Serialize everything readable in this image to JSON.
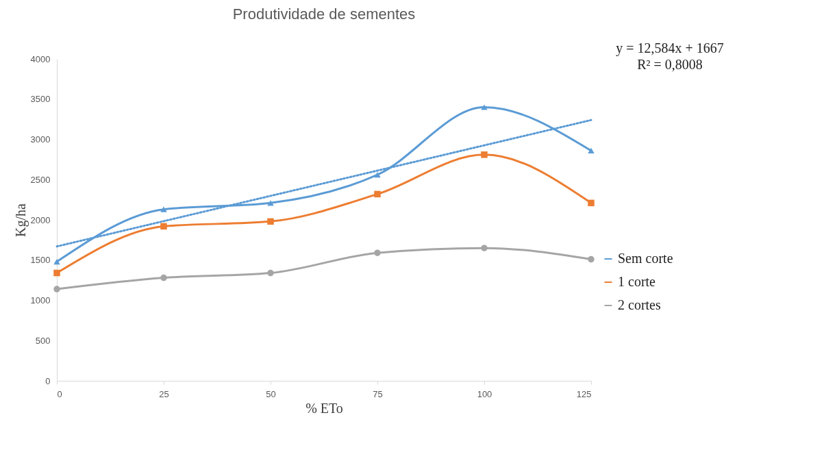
{
  "chart_data": {
    "type": "line",
    "title": "Produtividade de sementes",
    "xlabel": "% ETo",
    "ylabel": "Kg/ha",
    "x": [
      0,
      25,
      50,
      75,
      100,
      125
    ],
    "xlim": [
      0,
      125
    ],
    "xticks": [
      0,
      25,
      50,
      75,
      100,
      125
    ],
    "ylim": [
      0,
      4000
    ],
    "yticks": [
      0,
      500,
      1000,
      1500,
      2000,
      2500,
      3000,
      3500,
      4000
    ],
    "grid": false,
    "legend": "right",
    "series": [
      {
        "name": "Sem corte",
        "color": "#5b9bd5",
        "marker": "triangle",
        "values": [
          1480,
          2130,
          2210,
          2560,
          3400,
          2860
        ]
      },
      {
        "name": "1 corte",
        "color": "#ed7d31",
        "marker": "square",
        "values": [
          1340,
          1920,
          1980,
          2320,
          2810,
          2210
        ]
      },
      {
        "name": "2 cortes",
        "color": "#a5a5a5",
        "marker": "circle",
        "values": [
          1140,
          1280,
          1340,
          1590,
          1650,
          1510
        ]
      },
      {
        "type": "line",
        "color": "#5b9bd5",
        "marker": "none",
        "line_style": "dotted",
        "x": [
          0,
          125
        ],
        "values": [
          1670,
          3240
        ]
      }
    ],
    "annotations": [
      "y = 12,584x + 1667",
      "R² = 0,8008"
    ]
  }
}
